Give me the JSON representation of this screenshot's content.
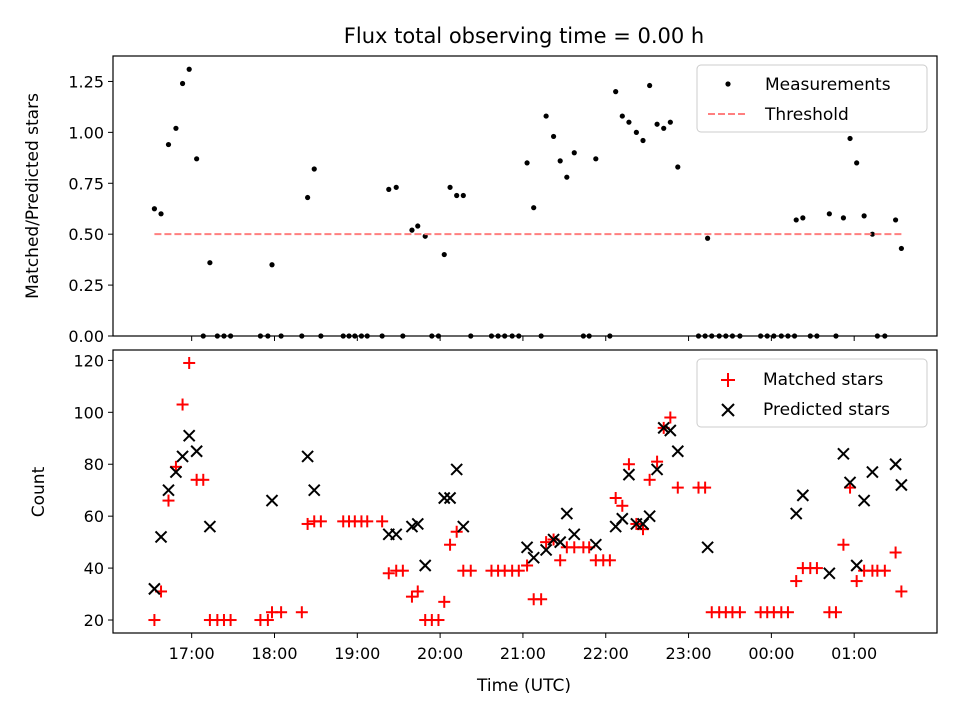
{
  "figure": {
    "title": "Flux total observing time = 0.00 h",
    "xlabel": "Time (UTC)"
  },
  "colors": {
    "measurement": "#000000",
    "threshold": "#ff7f7f",
    "matched": "#ff0000",
    "predicted": "#000000"
  },
  "chart_data": [
    {
      "type": "scatter",
      "ylabel": "Matched/Predicted stars",
      "ylim": [
        0,
        1.375
      ],
      "yticks": [
        "0.00",
        "0.25",
        "0.50",
        "0.75",
        "1.00",
        "1.25"
      ],
      "grid": false,
      "legend_position": "top-right",
      "legend": [
        {
          "name": "Measurements",
          "marker": "dot"
        },
        {
          "name": "Threshold",
          "marker": "dashed-line"
        }
      ],
      "threshold": 0.5,
      "threshold_x": [
        16.55,
        25.57
      ],
      "series": [
        {
          "name": "Measurements",
          "points": [
            [
              16.55,
              0.625
            ],
            [
              16.63,
              0.6
            ],
            [
              16.72,
              0.94
            ],
            [
              16.81,
              1.02
            ],
            [
              16.89,
              1.24
            ],
            [
              16.97,
              1.31
            ],
            [
              17.06,
              0.87
            ],
            [
              17.14,
              0.0
            ],
            [
              17.22,
              0.36
            ],
            [
              17.31,
              0.0
            ],
            [
              17.39,
              0.0
            ],
            [
              17.47,
              0.0
            ],
            [
              17.83,
              0.0
            ],
            [
              17.92,
              0.0
            ],
            [
              17.97,
              0.35
            ],
            [
              18.08,
              0.0
            ],
            [
              18.33,
              0.0
            ],
            [
              18.4,
              0.68
            ],
            [
              18.48,
              0.82
            ],
            [
              18.56,
              0.0
            ],
            [
              18.83,
              0.0
            ],
            [
              18.9,
              0.0
            ],
            [
              18.97,
              0.0
            ],
            [
              19.05,
              0.0
            ],
            [
              19.12,
              0.0
            ],
            [
              19.3,
              0.0
            ],
            [
              19.38,
              0.72
            ],
            [
              19.47,
              0.73
            ],
            [
              19.55,
              0.0
            ],
            [
              19.66,
              0.52
            ],
            [
              19.73,
              0.54
            ],
            [
              19.82,
              0.49
            ],
            [
              19.9,
              0.0
            ],
            [
              19.98,
              0.0
            ],
            [
              20.05,
              0.4
            ],
            [
              20.12,
              0.73
            ],
            [
              20.2,
              0.69
            ],
            [
              20.28,
              0.69
            ],
            [
              20.37,
              0.0
            ],
            [
              20.62,
              0.0
            ],
            [
              20.7,
              0.0
            ],
            [
              20.78,
              0.0
            ],
            [
              20.87,
              0.0
            ],
            [
              20.95,
              0.0
            ],
            [
              21.05,
              0.85
            ],
            [
              21.13,
              0.63
            ],
            [
              21.22,
              0.0
            ],
            [
              21.28,
              1.08
            ],
            [
              21.37,
              0.98
            ],
            [
              21.45,
              0.86
            ],
            [
              21.53,
              0.78
            ],
            [
              21.62,
              0.9
            ],
            [
              21.73,
              0.0
            ],
            [
              21.8,
              0.0
            ],
            [
              21.88,
              0.87
            ],
            [
              22.05,
              0.0
            ],
            [
              22.12,
              1.2
            ],
            [
              22.2,
              1.08
            ],
            [
              22.28,
              1.05
            ],
            [
              22.37,
              1.0
            ],
            [
              22.45,
              0.96
            ],
            [
              22.53,
              1.23
            ],
            [
              22.62,
              1.04
            ],
            [
              22.7,
              1.02
            ],
            [
              22.78,
              1.05
            ],
            [
              22.87,
              0.83
            ],
            [
              23.12,
              0.0
            ],
            [
              23.2,
              0.0
            ],
            [
              23.23,
              0.48
            ],
            [
              23.28,
              0.0
            ],
            [
              23.37,
              0.0
            ],
            [
              23.45,
              0.0
            ],
            [
              23.53,
              0.0
            ],
            [
              23.62,
              0.0
            ],
            [
              23.87,
              0.0
            ],
            [
              23.95,
              0.0
            ],
            [
              24.03,
              0.0
            ],
            [
              24.12,
              0.0
            ],
            [
              24.2,
              0.0
            ],
            [
              24.28,
              0.0
            ],
            [
              24.3,
              0.57
            ],
            [
              24.38,
              0.58
            ],
            [
              24.47,
              0.0
            ],
            [
              24.55,
              0.0
            ],
            [
              24.7,
              0.6
            ],
            [
              24.78,
              0.0
            ],
            [
              24.87,
              0.58
            ],
            [
              24.95,
              0.97
            ],
            [
              25.03,
              0.85
            ],
            [
              25.12,
              0.59
            ],
            [
              25.22,
              0.5
            ],
            [
              25.28,
              0.0
            ],
            [
              25.37,
              0.0
            ],
            [
              25.5,
              0.57
            ],
            [
              25.57,
              0.43
            ]
          ]
        }
      ]
    },
    {
      "type": "scatter",
      "ylabel": "Count",
      "ylim": [
        15,
        124
      ],
      "yticks": [
        "20",
        "40",
        "60",
        "80",
        "100",
        "120"
      ],
      "xticks": [
        {
          "value": 17,
          "label": "17:00"
        },
        {
          "value": 18,
          "label": "18:00"
        },
        {
          "value": 19,
          "label": "19:00"
        },
        {
          "value": 20,
          "label": "20:00"
        },
        {
          "value": 21,
          "label": "21:00"
        },
        {
          "value": 22,
          "label": "22:00"
        },
        {
          "value": 23,
          "label": "23:00"
        },
        {
          "value": 24,
          "label": "00:00"
        },
        {
          "value": 25,
          "label": "01:00"
        }
      ],
      "xlim": [
        16.05,
        26.0
      ],
      "grid": false,
      "legend_position": "top-right",
      "legend": [
        {
          "name": "Matched stars",
          "marker": "plus"
        },
        {
          "name": "Predicted stars",
          "marker": "x"
        }
      ],
      "series": [
        {
          "name": "Matched stars",
          "points": [
            [
              16.55,
              20
            ],
            [
              16.63,
              31
            ],
            [
              16.72,
              66
            ],
            [
              16.81,
              79
            ],
            [
              16.89,
              103
            ],
            [
              16.97,
              119
            ],
            [
              17.06,
              74
            ],
            [
              17.14,
              74
            ],
            [
              17.22,
              20
            ],
            [
              17.31,
              20
            ],
            [
              17.39,
              20
            ],
            [
              17.47,
              20
            ],
            [
              17.83,
              20
            ],
            [
              17.92,
              20
            ],
            [
              17.97,
              23
            ],
            [
              18.08,
              23
            ],
            [
              18.33,
              23
            ],
            [
              18.4,
              57
            ],
            [
              18.48,
              58
            ],
            [
              18.56,
              58
            ],
            [
              18.83,
              58
            ],
            [
              18.9,
              58
            ],
            [
              18.97,
              58
            ],
            [
              19.05,
              58
            ],
            [
              19.12,
              58
            ],
            [
              19.3,
              58
            ],
            [
              19.38,
              38
            ],
            [
              19.47,
              39
            ],
            [
              19.55,
              39
            ],
            [
              19.66,
              29
            ],
            [
              19.73,
              31
            ],
            [
              19.82,
              20
            ],
            [
              19.9,
              20
            ],
            [
              19.98,
              20
            ],
            [
              20.05,
              27
            ],
            [
              20.12,
              49
            ],
            [
              20.2,
              54
            ],
            [
              20.28,
              39
            ],
            [
              20.37,
              39
            ],
            [
              20.62,
              39
            ],
            [
              20.7,
              39
            ],
            [
              20.78,
              39
            ],
            [
              20.87,
              39
            ],
            [
              20.95,
              39
            ],
            [
              21.05,
              41
            ],
            [
              21.13,
              28
            ],
            [
              21.22,
              28
            ],
            [
              21.28,
              50
            ],
            [
              21.37,
              51
            ],
            [
              21.45,
              43
            ],
            [
              21.53,
              48
            ],
            [
              21.62,
              48
            ],
            [
              21.73,
              48
            ],
            [
              21.8,
              48
            ],
            [
              21.88,
              43
            ],
            [
              21.97,
              43
            ],
            [
              22.05,
              43
            ],
            [
              22.12,
              67
            ],
            [
              22.2,
              64
            ],
            [
              22.28,
              80
            ],
            [
              22.37,
              57
            ],
            [
              22.45,
              55
            ],
            [
              22.53,
              74
            ],
            [
              22.62,
              81
            ],
            [
              22.7,
              94
            ],
            [
              22.78,
              98
            ],
            [
              22.87,
              71
            ],
            [
              23.12,
              71
            ],
            [
              23.2,
              71
            ],
            [
              23.28,
              23
            ],
            [
              23.37,
              23
            ],
            [
              23.45,
              23
            ],
            [
              23.53,
              23
            ],
            [
              23.62,
              23
            ],
            [
              23.87,
              23
            ],
            [
              23.95,
              23
            ],
            [
              24.03,
              23
            ],
            [
              24.12,
              23
            ],
            [
              24.2,
              23
            ],
            [
              24.3,
              35
            ],
            [
              24.38,
              40
            ],
            [
              24.47,
              40
            ],
            [
              24.55,
              40
            ],
            [
              24.7,
              23
            ],
            [
              24.78,
              23
            ],
            [
              24.87,
              49
            ],
            [
              24.95,
              71
            ],
            [
              25.03,
              35
            ],
            [
              25.12,
              39
            ],
            [
              25.22,
              39
            ],
            [
              25.28,
              39
            ],
            [
              25.37,
              39
            ],
            [
              25.5,
              46
            ],
            [
              25.57,
              31
            ]
          ]
        },
        {
          "name": "Predicted stars",
          "points": [
            [
              16.55,
              32
            ],
            [
              16.63,
              52
            ],
            [
              16.72,
              70
            ],
            [
              16.81,
              77
            ],
            [
              16.89,
              83
            ],
            [
              16.97,
              91
            ],
            [
              17.06,
              85
            ],
            [
              17.22,
              56
            ],
            [
              17.97,
              66
            ],
            [
              18.4,
              83
            ],
            [
              18.48,
              70
            ],
            [
              19.38,
              53
            ],
            [
              19.47,
              53
            ],
            [
              19.66,
              56
            ],
            [
              19.73,
              57
            ],
            [
              19.82,
              41
            ],
            [
              20.05,
              67
            ],
            [
              20.12,
              67
            ],
            [
              20.2,
              78
            ],
            [
              20.28,
              56
            ],
            [
              21.05,
              48
            ],
            [
              21.13,
              44
            ],
            [
              21.28,
              47
            ],
            [
              21.37,
              51
            ],
            [
              21.45,
              50
            ],
            [
              21.53,
              61
            ],
            [
              21.62,
              53
            ],
            [
              21.88,
              49
            ],
            [
              22.12,
              56
            ],
            [
              22.2,
              59
            ],
            [
              22.28,
              76
            ],
            [
              22.37,
              57
            ],
            [
              22.45,
              57
            ],
            [
              22.53,
              60
            ],
            [
              22.62,
              78
            ],
            [
              22.7,
              94
            ],
            [
              22.78,
              93
            ],
            [
              22.87,
              85
            ],
            [
              23.23,
              48
            ],
            [
              24.3,
              61
            ],
            [
              24.38,
              68
            ],
            [
              24.7,
              38
            ],
            [
              24.87,
              84
            ],
            [
              24.95,
              73
            ],
            [
              25.03,
              41
            ],
            [
              25.12,
              66
            ],
            [
              25.22,
              77
            ],
            [
              25.5,
              80
            ],
            [
              25.57,
              72
            ]
          ]
        }
      ]
    }
  ]
}
